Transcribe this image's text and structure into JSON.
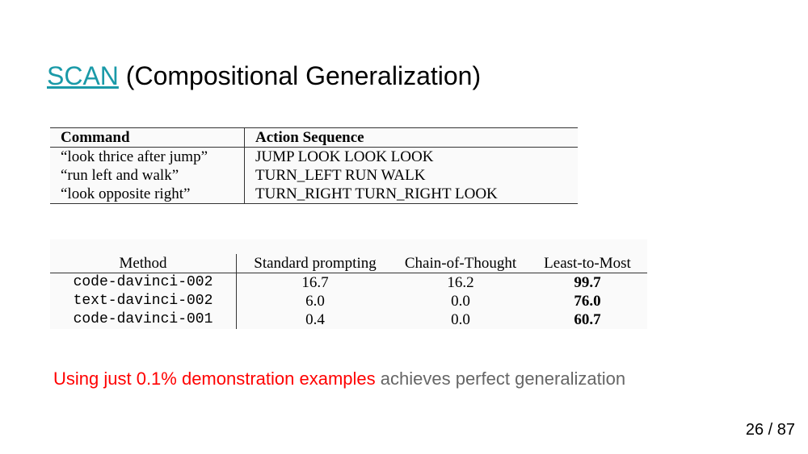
{
  "slide": {
    "title_link": "SCAN",
    "title_rest": " (Compositional Generalization)",
    "caption_red": "Using just 0.1% demonstration examples",
    "caption_gray": " achieves perfect generalization",
    "page_current": "26",
    "page_sep": " / ",
    "page_total": "87"
  },
  "table1": {
    "headers": [
      "Command",
      "Action Sequence"
    ],
    "rows": [
      [
        "“look thrice after jump”",
        "JUMP LOOK LOOK LOOK"
      ],
      [
        "“run left and walk”",
        "TURN_LEFT RUN WALK"
      ],
      [
        "“look opposite right”",
        "TURN_RIGHT TURN_RIGHT LOOK"
      ]
    ]
  },
  "table2": {
    "headers": [
      "Method",
      "Standard prompting",
      "Chain-of-Thought",
      "Least-to-Most"
    ],
    "rows": [
      [
        "code-davinci-002",
        "16.7",
        "16.2",
        "99.7"
      ],
      [
        "text-davinci-002",
        "6.0",
        "0.0",
        "76.0"
      ],
      [
        "code-davinci-001",
        "0.4",
        "0.0",
        "60.7"
      ]
    ]
  }
}
